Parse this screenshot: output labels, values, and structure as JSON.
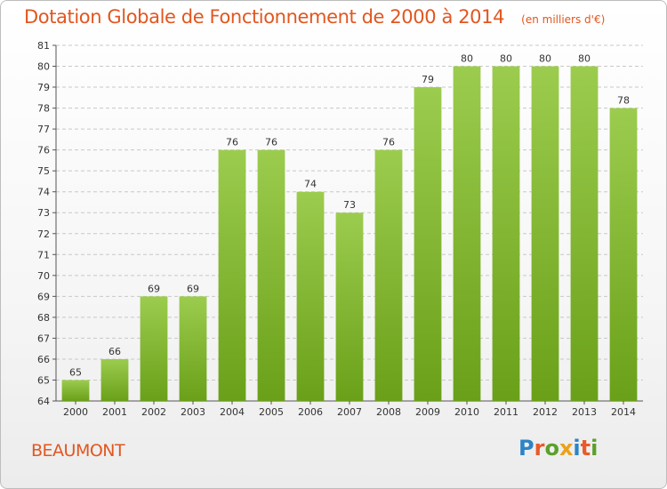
{
  "title": "Dotation Globale de Fonctionnement de 2000 à 2014",
  "subtitle": "(en milliers d'€)",
  "commune": "BEAUMONT",
  "logo": {
    "text": "Proxiti",
    "letters": [
      {
        "ch": "P",
        "color": "#2c84c6"
      },
      {
        "ch": "r",
        "color": "#e85a2a"
      },
      {
        "ch": "o",
        "color": "#5aa12b"
      },
      {
        "ch": "x",
        "color": "#e9a21b"
      },
      {
        "ch": "i",
        "color": "#2c84c6"
      },
      {
        "ch": "t",
        "color": "#e85a2a"
      },
      {
        "ch": "i",
        "color": "#5aa12b"
      }
    ]
  },
  "colors": {
    "accent": "#e2561f",
    "bar_light": "#9ccc4e",
    "bar_dark": "#6aa019",
    "grid": "#c8c8c8"
  },
  "chart_data": {
    "type": "bar",
    "title": "Dotation Globale de Fonctionnement de 2000 à 2014",
    "subtitle": "(en milliers d'€)",
    "categories": [
      "2000",
      "2001",
      "2002",
      "2003",
      "2004",
      "2005",
      "2006",
      "2007",
      "2008",
      "2009",
      "2010",
      "2011",
      "2012",
      "2013",
      "2014"
    ],
    "values": [
      65,
      66,
      69,
      69,
      76,
      76,
      74,
      73,
      76,
      79,
      80,
      80,
      80,
      80,
      78
    ],
    "ylim": [
      64,
      81
    ],
    "yticks": [
      64,
      65,
      66,
      67,
      68,
      69,
      70,
      71,
      72,
      73,
      74,
      75,
      76,
      77,
      78,
      79,
      80,
      81
    ],
    "grid": true,
    "xlabel": "",
    "ylabel": ""
  }
}
